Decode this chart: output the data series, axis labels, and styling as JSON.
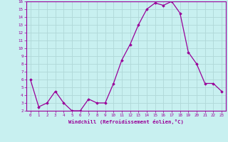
{
  "x": [
    0,
    1,
    2,
    3,
    4,
    5,
    6,
    7,
    8,
    9,
    10,
    11,
    12,
    13,
    14,
    15,
    16,
    17,
    18,
    19,
    20,
    21,
    22,
    23
  ],
  "y": [
    6,
    2.5,
    3,
    4.5,
    3,
    2,
    2,
    3.5,
    3,
    3,
    5.5,
    8.5,
    10.5,
    13,
    15,
    15.8,
    15.5,
    16,
    14.5,
    9.5,
    8,
    5.5,
    5.5,
    4.5
  ],
  "line_color": "#990099",
  "marker": "D",
  "marker_size": 1.8,
  "bg_color": "#c8f0f0",
  "grid_color": "#b0d8d8",
  "xlabel": "Windchill (Refroidissement éolien,°C)",
  "xlabel_color": "#990099",
  "tick_color": "#990099",
  "spine_color": "#990099",
  "ylim": [
    2,
    16
  ],
  "yticks": [
    2,
    3,
    4,
    5,
    6,
    7,
    8,
    9,
    10,
    11,
    12,
    13,
    14,
    15,
    16
  ],
  "xlim": [
    -0.5,
    23.5
  ],
  "xticks": [
    0,
    1,
    2,
    3,
    4,
    5,
    6,
    7,
    8,
    9,
    10,
    11,
    12,
    13,
    14,
    15,
    16,
    17,
    18,
    19,
    20,
    21,
    22,
    23
  ]
}
